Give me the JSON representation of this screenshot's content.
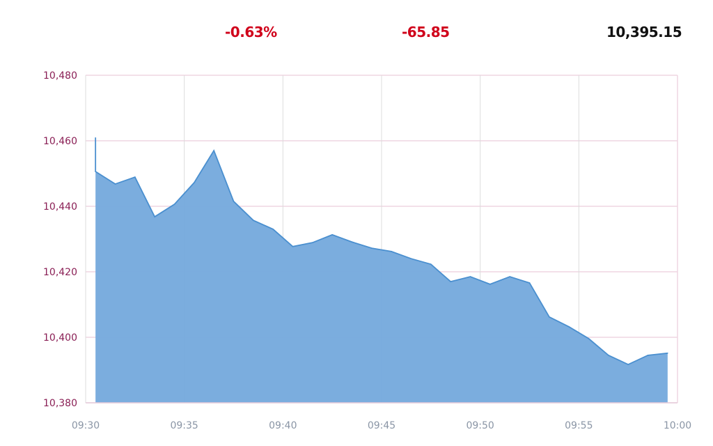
{
  "header": {
    "change_percent": "-0.63%",
    "change_points": "-65.85",
    "last_value": "10,395.15",
    "negative_color": "#d0021b"
  },
  "chart_data": {
    "type": "area",
    "title": "",
    "xlabel": "",
    "ylabel": "",
    "xlim": [
      "09:30",
      "10:00"
    ],
    "ylim": [
      10380,
      10480
    ],
    "x_ticks": [
      "09:30",
      "09:35",
      "09:40",
      "09:45",
      "09:50",
      "09:55",
      "10:00"
    ],
    "y_ticks": [
      "10,380",
      "10,400",
      "10,420",
      "10,440",
      "10,460",
      "10,480"
    ],
    "y_tick_values": [
      10380,
      10400,
      10420,
      10440,
      10460,
      10480
    ],
    "grid": true,
    "fill_color": "#74a9dc",
    "line_color": "#4a8fcf",
    "opening_spike": {
      "time": "09:30:30",
      "value": 10461
    },
    "points": [
      {
        "time": "09:30:30",
        "value": 10450.6
      },
      {
        "time": "09:31:30",
        "value": 10446.8
      },
      {
        "time": "09:32:30",
        "value": 10448.9
      },
      {
        "time": "09:33:30",
        "value": 10436.8
      },
      {
        "time": "09:34:30",
        "value": 10440.6
      },
      {
        "time": "09:35:30",
        "value": 10447.2
      },
      {
        "time": "09:36:30",
        "value": 10457.0
      },
      {
        "time": "09:37:30",
        "value": 10441.5
      },
      {
        "time": "09:38:30",
        "value": 10435.7
      },
      {
        "time": "09:39:30",
        "value": 10433.0
      },
      {
        "time": "09:40:30",
        "value": 10427.7
      },
      {
        "time": "09:41:30",
        "value": 10428.9
      },
      {
        "time": "09:42:30",
        "value": 10431.3
      },
      {
        "time": "09:43:30",
        "value": 10429.1
      },
      {
        "time": "09:44:30",
        "value": 10427.2
      },
      {
        "time": "09:45:30",
        "value": 10426.2
      },
      {
        "time": "09:46:30",
        "value": 10424.0
      },
      {
        "time": "09:47:30",
        "value": 10422.3
      },
      {
        "time": "09:48:30",
        "value": 10417.0
      },
      {
        "time": "09:49:30",
        "value": 10418.5
      },
      {
        "time": "09:50:30",
        "value": 10416.2
      },
      {
        "time": "09:51:30",
        "value": 10418.5
      },
      {
        "time": "09:52:30",
        "value": 10416.6
      },
      {
        "time": "09:53:30",
        "value": 10406.2
      },
      {
        "time": "09:54:30",
        "value": 10403.2
      },
      {
        "time": "09:55:30",
        "value": 10399.6
      },
      {
        "time": "09:56:30",
        "value": 10394.5
      },
      {
        "time": "09:57:30",
        "value": 10391.7
      },
      {
        "time": "09:58:30",
        "value": 10394.5
      },
      {
        "time": "09:59:30",
        "value": 10395.15
      }
    ]
  }
}
